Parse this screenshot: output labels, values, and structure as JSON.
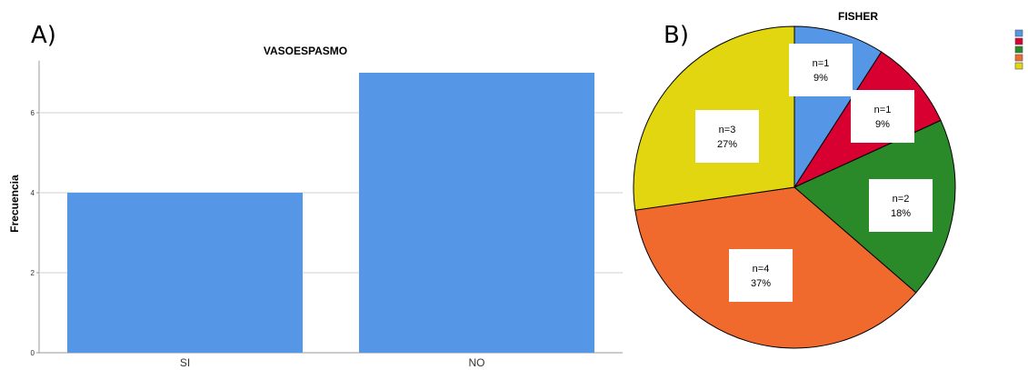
{
  "panels": {
    "a_label": "A)",
    "b_label": "B)"
  },
  "chart_data": [
    {
      "type": "bar",
      "title": "VASOESPASMO",
      "xlabel": "",
      "ylabel": "Frecuencia",
      "categories": [
        "SI",
        "NO"
      ],
      "values": [
        4,
        7
      ],
      "ylim": [
        0,
        7.3
      ],
      "yticks": [
        0,
        2,
        4,
        6
      ],
      "grid": true,
      "bar_color": "#5596e6"
    },
    {
      "type": "pie",
      "title": "FISHER",
      "slices": [
        {
          "n": 1,
          "label": "n=1",
          "pct": "9%",
          "color": "#5596e6"
        },
        {
          "n": 1,
          "label": "n=1",
          "pct": "9%",
          "color": "#d80030"
        },
        {
          "n": 2,
          "label": "n=2",
          "pct": "18%",
          "color": "#2a8a2a"
        },
        {
          "n": 4,
          "label": "n=4",
          "pct": "37%",
          "color": "#f06a2e"
        },
        {
          "n": 3,
          "label": "n=3",
          "pct": "27%",
          "color": "#e2d610"
        }
      ],
      "legend_placement": "top-right"
    }
  ]
}
